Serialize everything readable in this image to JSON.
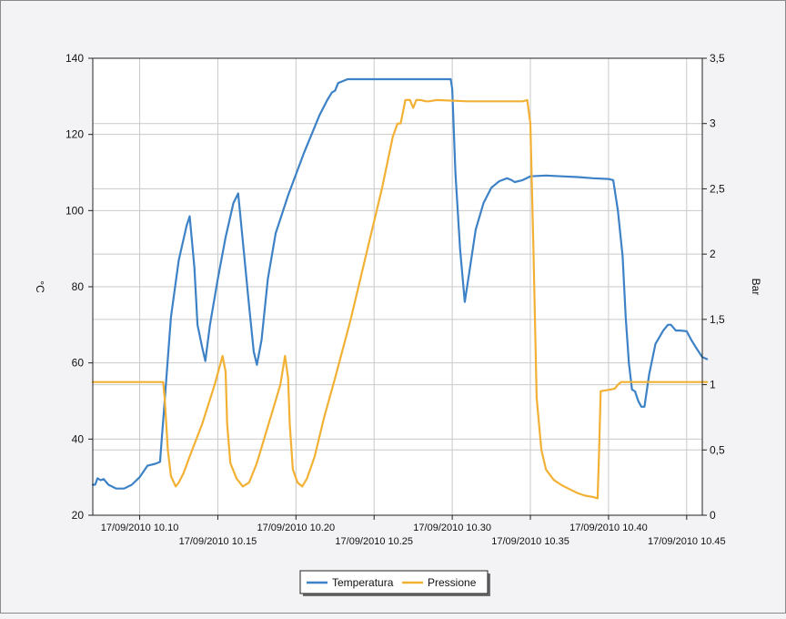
{
  "chart_data": {
    "type": "line",
    "title": "",
    "x_start": "17/09/2010 10.07",
    "x_end": "17/09/2010 10.46",
    "x_ticks": [
      {
        "label": "17/09/2010 10.10",
        "t": 3,
        "row": 0
      },
      {
        "label": "17/09/2010 10.15",
        "t": 8,
        "row": 1
      },
      {
        "label": "17/09/2010 10.20",
        "t": 13,
        "row": 0
      },
      {
        "label": "17/09/2010 10.25",
        "t": 18,
        "row": 1
      },
      {
        "label": "17/09/2010 10.30",
        "t": 23,
        "row": 0
      },
      {
        "label": "17/09/2010 10.35",
        "t": 28,
        "row": 1
      },
      {
        "label": "17/09/2010 10.40",
        "t": 33,
        "row": 0
      },
      {
        "label": "17/09/2010 10.45",
        "t": 38,
        "row": 1
      }
    ],
    "x_minutes_after_10_07": [
      0,
      39
    ],
    "y_left": {
      "label": "°C",
      "min": 20,
      "max": 140,
      "ticks": [
        "20",
        "40",
        "60",
        "80",
        "100",
        "120",
        "140"
      ]
    },
    "y_right": {
      "label": "Bar",
      "min": 0,
      "max": 3.5,
      "ticks": [
        "0",
        "0,5",
        "1",
        "1,5",
        "2",
        "2,5",
        "3",
        "3,5"
      ]
    },
    "grid": true,
    "legend_position": "bottom-center",
    "series": [
      {
        "name": "Temperatura",
        "axis": "left",
        "color": "#3d82c6",
        "points": [
          [
            0.0,
            28
          ],
          [
            0.15,
            28
          ],
          [
            0.3,
            29.7
          ],
          [
            0.5,
            29.2
          ],
          [
            0.7,
            29.5
          ],
          [
            1.0,
            28
          ],
          [
            1.5,
            27
          ],
          [
            2.0,
            27
          ],
          [
            2.5,
            28
          ],
          [
            3.0,
            30
          ],
          [
            3.5,
            33
          ],
          [
            4.0,
            33.5
          ],
          [
            4.3,
            34
          ],
          [
            4.6,
            50
          ],
          [
            5.0,
            72
          ],
          [
            5.5,
            87
          ],
          [
            6.0,
            96
          ],
          [
            6.2,
            98.5
          ],
          [
            6.5,
            85
          ],
          [
            6.7,
            70
          ],
          [
            7.0,
            64
          ],
          [
            7.2,
            60.5
          ],
          [
            7.5,
            70
          ],
          [
            8.0,
            82
          ],
          [
            8.5,
            93
          ],
          [
            9.0,
            102
          ],
          [
            9.3,
            104.5
          ],
          [
            9.6,
            92
          ],
          [
            10.0,
            75
          ],
          [
            10.3,
            63
          ],
          [
            10.5,
            59.5
          ],
          [
            10.8,
            66
          ],
          [
            11.2,
            82
          ],
          [
            11.7,
            94
          ],
          [
            12.5,
            104
          ],
          [
            13.5,
            115
          ],
          [
            14.5,
            125
          ],
          [
            15.0,
            129
          ],
          [
            15.3,
            131
          ],
          [
            15.5,
            131.5
          ],
          [
            15.7,
            133.5
          ],
          [
            16.0,
            134
          ],
          [
            16.3,
            134.5
          ],
          [
            18.0,
            134.5
          ],
          [
            20.0,
            134.5
          ],
          [
            22.0,
            134.5
          ],
          [
            22.9,
            134.5
          ],
          [
            23.0,
            132
          ],
          [
            23.2,
            110
          ],
          [
            23.5,
            90
          ],
          [
            23.8,
            76
          ],
          [
            24.1,
            84
          ],
          [
            24.5,
            95
          ],
          [
            25.0,
            102
          ],
          [
            25.5,
            106
          ],
          [
            26.0,
            107.7
          ],
          [
            26.5,
            108.5
          ],
          [
            26.8,
            108
          ],
          [
            27.0,
            107.5
          ],
          [
            27.5,
            108
          ],
          [
            28.0,
            109
          ],
          [
            29.0,
            109.2
          ],
          [
            30.0,
            109
          ],
          [
            31.0,
            108.8
          ],
          [
            32.0,
            108.5
          ],
          [
            33.0,
            108.3
          ],
          [
            33.3,
            108
          ],
          [
            33.6,
            100
          ],
          [
            33.9,
            88
          ],
          [
            34.1,
            72
          ],
          [
            34.3,
            60
          ],
          [
            34.5,
            53
          ],
          [
            34.7,
            52.5
          ],
          [
            34.9,
            50
          ],
          [
            35.1,
            48.5
          ],
          [
            35.3,
            48.5
          ],
          [
            35.6,
            57
          ],
          [
            36.0,
            65
          ],
          [
            36.5,
            68.5
          ],
          [
            36.8,
            70
          ],
          [
            37.0,
            70
          ],
          [
            37.3,
            68.5
          ],
          [
            37.6,
            68.5
          ],
          [
            38.0,
            68.3
          ],
          [
            38.3,
            66
          ],
          [
            38.6,
            64
          ],
          [
            39.0,
            61.5
          ],
          [
            39.3,
            61
          ]
        ]
      },
      {
        "name": "Pressione",
        "axis": "right",
        "color": "#f2b134",
        "points": [
          [
            0.0,
            1.02
          ],
          [
            3.5,
            1.02
          ],
          [
            4.5,
            1.02
          ],
          [
            4.6,
            0.9
          ],
          [
            4.8,
            0.5
          ],
          [
            5.0,
            0.3
          ],
          [
            5.3,
            0.22
          ],
          [
            5.5,
            0.25
          ],
          [
            5.8,
            0.32
          ],
          [
            6.2,
            0.45
          ],
          [
            7.0,
            0.7
          ],
          [
            7.8,
            1.0
          ],
          [
            8.3,
            1.22
          ],
          [
            8.5,
            1.1
          ],
          [
            8.6,
            0.7
          ],
          [
            8.8,
            0.4
          ],
          [
            9.2,
            0.28
          ],
          [
            9.6,
            0.22
          ],
          [
            10.0,
            0.25
          ],
          [
            10.5,
            0.4
          ],
          [
            11.5,
            0.8
          ],
          [
            12.0,
            1.0
          ],
          [
            12.3,
            1.22
          ],
          [
            12.5,
            1.05
          ],
          [
            12.6,
            0.7
          ],
          [
            12.8,
            0.35
          ],
          [
            13.1,
            0.25
          ],
          [
            13.4,
            0.22
          ],
          [
            13.7,
            0.28
          ],
          [
            14.2,
            0.45
          ],
          [
            14.8,
            0.75
          ],
          [
            15.5,
            1.05
          ],
          [
            16.5,
            1.5
          ],
          [
            17.5,
            2.0
          ],
          [
            18.5,
            2.5
          ],
          [
            19.2,
            2.9
          ],
          [
            19.5,
            3.0
          ],
          [
            19.7,
            3.0
          ],
          [
            20.0,
            3.18
          ],
          [
            20.3,
            3.18
          ],
          [
            20.5,
            3.12
          ],
          [
            20.7,
            3.18
          ],
          [
            21.0,
            3.18
          ],
          [
            21.3,
            3.17
          ],
          [
            21.5,
            3.17
          ],
          [
            22.0,
            3.18
          ],
          [
            24.0,
            3.17
          ],
          [
            26.0,
            3.17
          ],
          [
            27.5,
            3.17
          ],
          [
            27.8,
            3.18
          ],
          [
            28.0,
            3.0
          ],
          [
            28.2,
            2.0
          ],
          [
            28.4,
            0.9
          ],
          [
            28.7,
            0.5
          ],
          [
            29.0,
            0.35
          ],
          [
            29.5,
            0.27
          ],
          [
            30.0,
            0.23
          ],
          [
            30.5,
            0.2
          ],
          [
            31.0,
            0.17
          ],
          [
            31.5,
            0.15
          ],
          [
            32.0,
            0.14
          ],
          [
            32.3,
            0.13
          ],
          [
            32.4,
            0.5
          ],
          [
            32.5,
            0.95
          ],
          [
            33.0,
            0.96
          ],
          [
            33.4,
            0.97
          ],
          [
            33.6,
            1.0
          ],
          [
            33.8,
            1.02
          ],
          [
            35.0,
            1.02
          ],
          [
            37.0,
            1.02
          ],
          [
            39.3,
            1.02
          ]
        ]
      }
    ]
  }
}
